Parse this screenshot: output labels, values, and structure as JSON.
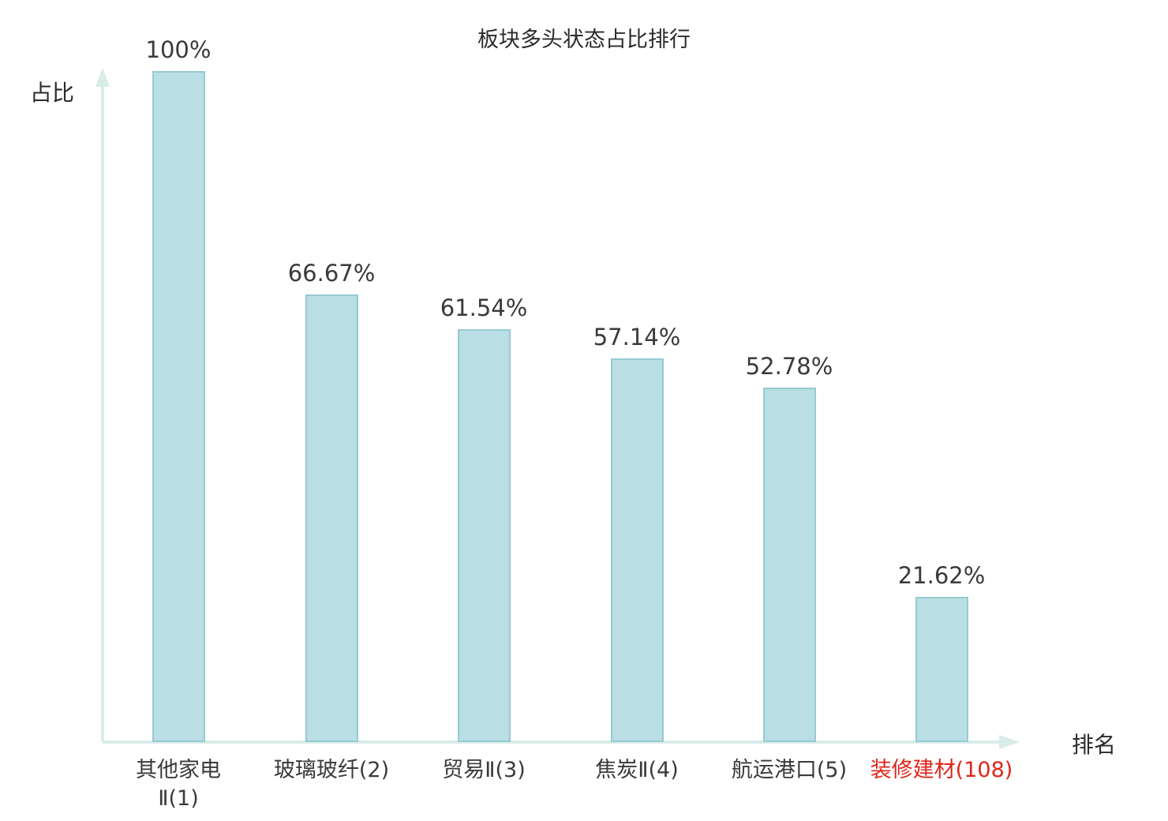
{
  "chart_data": {
    "type": "bar",
    "title": "板块多头状态占比排行",
    "ylabel": "占比",
    "xlabel": "排名",
    "categories": [
      "其他家电\nⅡ(1)",
      "玻璃玻纤(2)",
      "贸易Ⅱ(3)",
      "焦炭Ⅱ(4)",
      "航运港口(5)",
      "装修建材(108)"
    ],
    "values": [
      100,
      66.67,
      61.54,
      57.14,
      52.78,
      21.62
    ],
    "value_labels": [
      "100%",
      "66.67%",
      "61.54%",
      "57.14%",
      "52.78%",
      "21.62%"
    ],
    "ylim": [
      0,
      100
    ],
    "grid": false,
    "legend": false,
    "highlight_index": 5,
    "colors": {
      "bar_fill": "#b9dee3",
      "bar_border": "#96cbd2",
      "axis": "#d8ece8",
      "text": "#3a3a3a",
      "highlight": "#e02419"
    }
  }
}
